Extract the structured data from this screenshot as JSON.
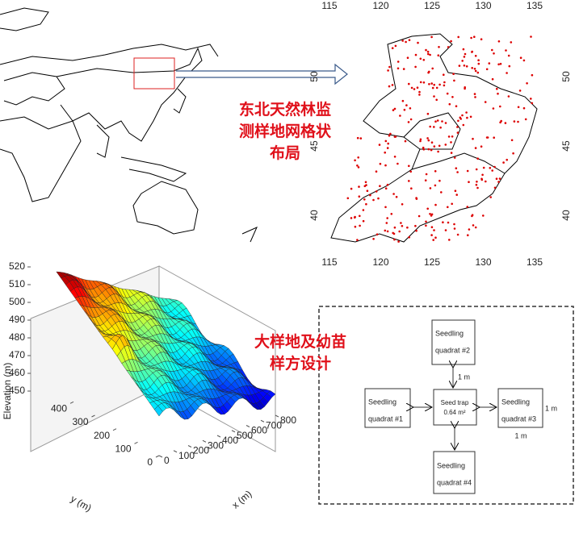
{
  "grid_map": {
    "lon_ticks": [
      115,
      120,
      125,
      130,
      135
    ],
    "lat_ticks": [
      40,
      45,
      50
    ]
  },
  "caption_top": [
    "东北天然林监",
    "测样地网格状",
    "布局"
  ],
  "surface": {
    "z_label": "Elevation (m)",
    "z_ticks": [
      450,
      460,
      470,
      480,
      490,
      500,
      510,
      520
    ],
    "y_label": "y (m)",
    "y_ticks": [
      0,
      100,
      200,
      300,
      400
    ],
    "x_label": "x (m)",
    "x_ticks": [
      0,
      100,
      200,
      300,
      400,
      500,
      600,
      700,
      800
    ]
  },
  "caption_bottom": [
    "大样地及幼苗",
    "样方设计"
  ],
  "design": {
    "quadrats": [
      {
        "line1": "Seedling",
        "line2": "quadrat #1"
      },
      {
        "line1": "Seedling",
        "line2": "quadrat #2"
      },
      {
        "line1": "Seedling",
        "line2": "quadrat #3"
      },
      {
        "line1": "Seedling",
        "line2": "quadrat #4"
      }
    ],
    "trap": {
      "line1": "Seed trap",
      "line2": "0.64 m²"
    },
    "distances": [
      "1 m",
      "1 m",
      "1 m"
    ]
  }
}
